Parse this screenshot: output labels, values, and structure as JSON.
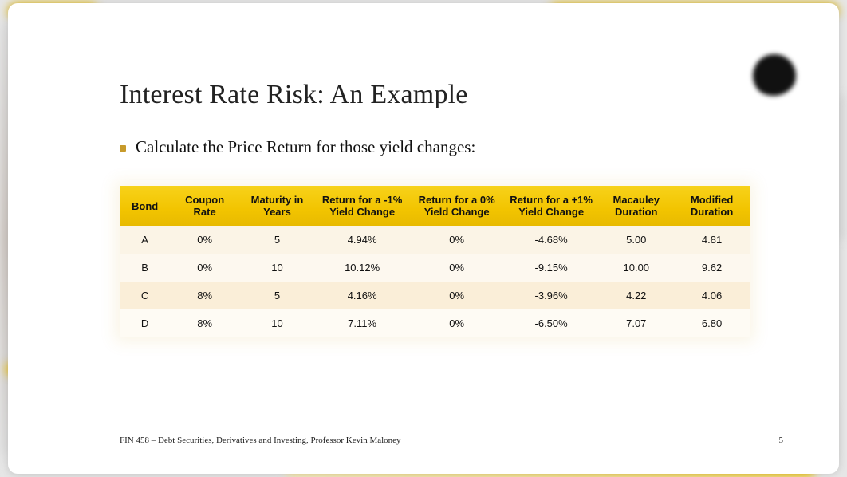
{
  "accent_color": "#f2c400",
  "title": "Interest Rate Risk: An Example",
  "bullet": "Calculate the Price Return for those yield changes:",
  "table": {
    "columns": [
      "Bond",
      "Coupon Rate",
      "Maturity in Years",
      "Return for a -1% Yield Change",
      "Return for a 0% Yield Change",
      "Return for a +1% Yield Change",
      "Macauley Duration",
      "Modified Duration"
    ],
    "col_widths_pct": [
      8,
      11,
      12,
      15,
      15,
      15,
      12,
      12
    ],
    "header_bg_gradient": [
      "#f7d21a",
      "#f2c400",
      "#e8ba00"
    ],
    "header_fontsize": 13,
    "cell_fontsize": 13,
    "row_bg_colors": [
      "#fbf4e6",
      "#fdf8ef",
      "#faeed8",
      "#fefbf4"
    ],
    "rows": [
      [
        "A",
        "0%",
        "5",
        "4.94%",
        "0%",
        "-4.68%",
        "5.00",
        "4.81"
      ],
      [
        "B",
        "0%",
        "10",
        "10.12%",
        "0%",
        "-9.15%",
        "10.00",
        "9.62"
      ],
      [
        "C",
        "8%",
        "5",
        "4.16%",
        "0%",
        "-3.96%",
        "4.22",
        "4.06"
      ],
      [
        "D",
        "8%",
        "10",
        "7.11%",
        "0%",
        "-6.50%",
        "7.07",
        "6.80"
      ]
    ]
  },
  "footer": {
    "left": "FIN 458 – Debt Securities, Derivatives and Investing, Professor Kevin Maloney",
    "page": "5"
  }
}
